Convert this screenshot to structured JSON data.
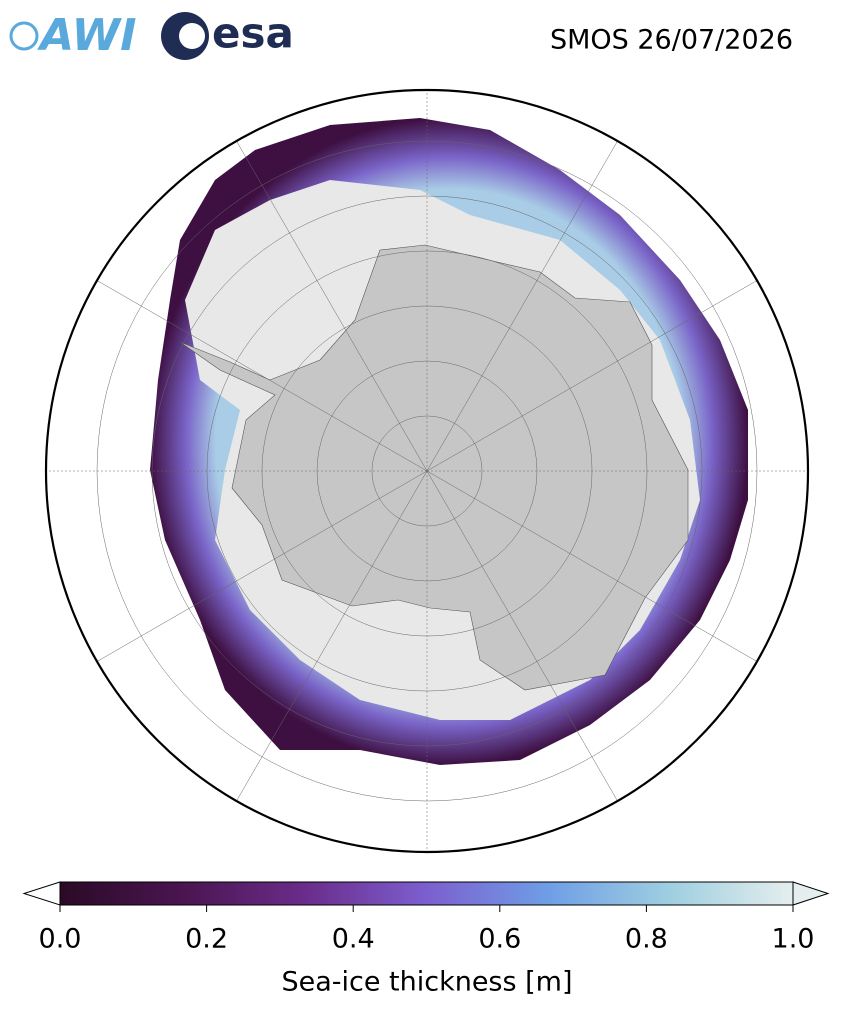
{
  "logos": {
    "awi": "AWI",
    "esa": "esa"
  },
  "title": "SMOS 26/07/2026",
  "colorbar": {
    "label": "Sea-ice thickness [m]",
    "lim": [
      0,
      1
    ],
    "ticks": [
      {
        "value": 0,
        "label": "0.0"
      },
      {
        "value": 0.2,
        "label": "0.2"
      },
      {
        "value": 0.4,
        "label": "0.4"
      },
      {
        "value": 0.6,
        "label": "0.6"
      },
      {
        "value": 0.8,
        "label": "0.8"
      },
      {
        "value": 1,
        "label": "1.0"
      }
    ],
    "colors": [
      "#2b0a26",
      "#4a1550",
      "#6a2c8a",
      "#7c5fcf",
      "#6f9ee6",
      "#9fcfe0",
      "#e5eeee"
    ]
  }
}
